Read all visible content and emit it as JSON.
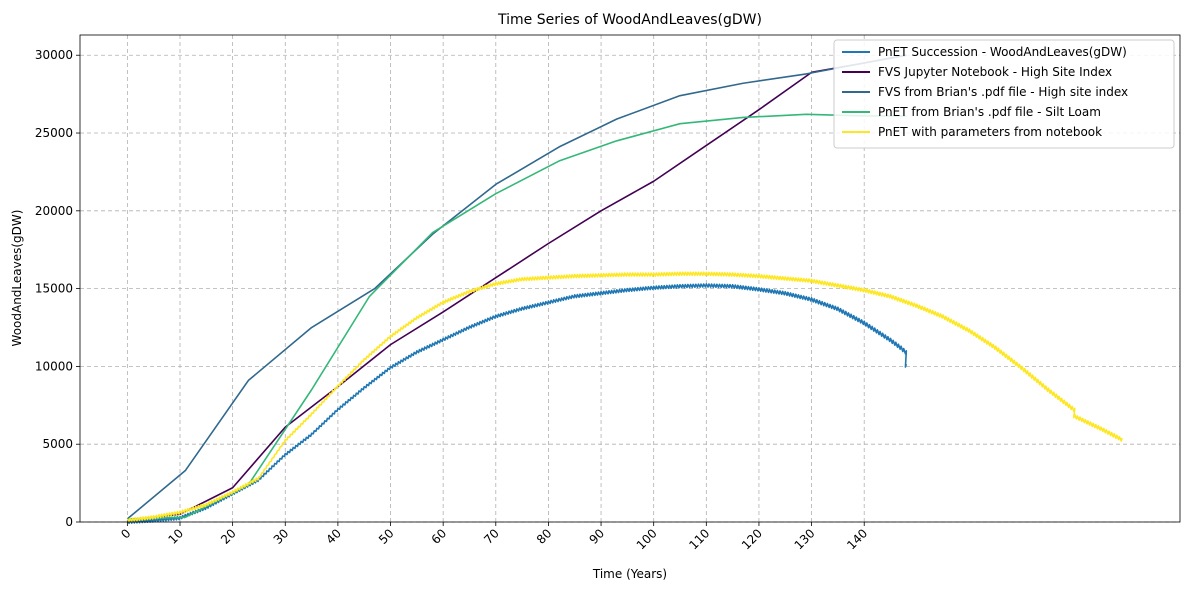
{
  "chart_data": {
    "type": "line",
    "title": "Time Series of WoodAndLeaves(gDW)",
    "xlabel": "Time (Years)",
    "ylabel": "WoodAndLeaves(gDW)",
    "xlim": [
      -9,
      200
    ],
    "ylim": [
      0,
      31300
    ],
    "xticks": [
      0,
      10,
      20,
      30,
      40,
      50,
      60,
      70,
      80,
      90,
      100,
      110,
      120,
      130,
      140
    ],
    "yticks": [
      0,
      5000,
      10000,
      15000,
      20000,
      25000,
      30000
    ],
    "grid": true,
    "legend_position": "top-right",
    "series": [
      {
        "name": "PnET Succession - WoodAndLeaves(gDW)",
        "color": "#1f77b4",
        "jagged": true,
        "x": [
          0,
          5,
          10,
          15,
          20,
          25,
          30,
          35,
          40,
          45,
          50,
          55,
          60,
          65,
          70,
          75,
          80,
          85,
          90,
          95,
          100,
          105,
          110,
          115,
          120,
          125,
          130,
          135,
          140,
          145,
          147,
          148,
          148
        ],
        "y": [
          100,
          200,
          350,
          1000,
          1900,
          2800,
          4400,
          5700,
          7300,
          8700,
          10000,
          11000,
          11800,
          12600,
          13300,
          13800,
          14200,
          14600,
          14800,
          15000,
          15150,
          15250,
          15300,
          15250,
          15050,
          14800,
          14400,
          13800,
          12900,
          11800,
          11300,
          11000,
          10150
        ]
      },
      {
        "name": "FVS Jupyter Notebook - High Site Index",
        "color": "#440154",
        "x": [
          0,
          10,
          20,
          30,
          40,
          50,
          60,
          70,
          80,
          90,
          100,
          110,
          120,
          130,
          140,
          148
        ],
        "y": [
          100,
          500,
          2200,
          6100,
          8700,
          11400,
          13500,
          15700,
          17900,
          20000,
          21900,
          24200,
          26500,
          28900,
          29500,
          30000
        ]
      },
      {
        "name": "FVS from Brian's .pdf file - High site index",
        "color": "#31688e",
        "x": [
          0,
          11,
          23,
          35,
          47,
          58,
          70,
          82,
          93,
          105,
          117,
          129,
          140,
          148
        ],
        "y": [
          200,
          3300,
          9100,
          12500,
          15000,
          18500,
          21700,
          24100,
          25900,
          27400,
          28200,
          28800,
          29500,
          30000
        ]
      },
      {
        "name": "PnET from Brian's .pdf file - Silt Loam",
        "color": "#35b779",
        "x": [
          0,
          11,
          23,
          35,
          46,
          58,
          70,
          82,
          93,
          105,
          117,
          129,
          140,
          148
        ],
        "y": [
          200,
          300,
          2400,
          8500,
          14500,
          18600,
          21100,
          23200,
          24500,
          25600,
          26000,
          26200,
          26100,
          26100
        ]
      },
      {
        "name": "PnET with parameters from notebook",
        "color": "#fde725",
        "jagged": true,
        "x": [
          0,
          5,
          10,
          15,
          20,
          25,
          30,
          35,
          40,
          45,
          50,
          55,
          60,
          65,
          70,
          75,
          80,
          85,
          90,
          95,
          100,
          105,
          110,
          115,
          120,
          125,
          130,
          135,
          140,
          145,
          150,
          155,
          160,
          165,
          170,
          175,
          180,
          180,
          185,
          189
        ],
        "y": [
          200,
          400,
          700,
          1200,
          2000,
          2900,
          5300,
          7000,
          8800,
          10500,
          12000,
          13200,
          14200,
          14900,
          15400,
          15700,
          15800,
          15900,
          15950,
          16000,
          16000,
          16050,
          16050,
          16000,
          15900,
          15750,
          15600,
          15300,
          15000,
          14600,
          14000,
          13300,
          12400,
          11300,
          10000,
          8600,
          7300,
          6900,
          6100,
          5400
        ]
      }
    ]
  }
}
